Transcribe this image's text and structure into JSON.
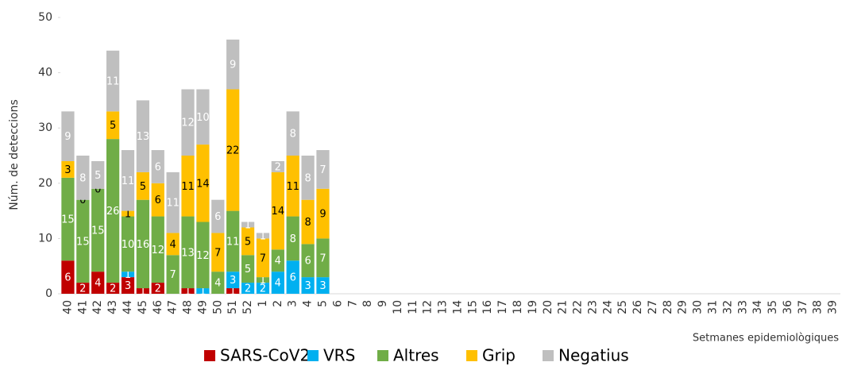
{
  "chart_data": {
    "type": "stacked_bar",
    "y_label": "Núm. de deteccions",
    "x_label": "Setmanes epidemiològiques",
    "categories": [
      "40",
      "41",
      "42",
      "43",
      "44",
      "45",
      "46",
      "47",
      "48",
      "49",
      "50",
      "51",
      "52",
      "1",
      "2",
      "3",
      "4",
      "5",
      "6",
      "7",
      "8",
      "9",
      "10",
      "11",
      "12",
      "13",
      "14",
      "15",
      "16",
      "17",
      "18",
      "19",
      "20",
      "21",
      "22",
      "23",
      "24",
      "25",
      "26",
      "27",
      "28",
      "29",
      "30",
      "31",
      "32",
      "33",
      "34",
      "35",
      "36",
      "37",
      "38",
      "39"
    ],
    "series": [
      {
        "name": "SARS-CoV2",
        "color": "#c00000",
        "label_color": "#ffffff",
        "values": [
          6,
          2,
          4,
          2,
          3,
          1,
          2,
          null,
          1,
          null,
          null,
          1,
          null,
          null,
          null,
          null,
          null,
          null,
          null,
          null,
          null,
          null,
          null,
          null,
          null,
          null,
          null,
          null,
          null,
          null,
          null,
          null,
          null,
          null,
          null,
          null,
          null,
          null,
          null,
          null,
          null,
          null,
          null,
          null,
          null,
          null,
          null,
          null,
          null,
          null,
          null,
          null
        ]
      },
      {
        "name": "VRS",
        "color": "#00b0f0",
        "label_color": "#ffffff",
        "values": [
          null,
          null,
          null,
          null,
          1,
          null,
          null,
          null,
          null,
          1,
          null,
          3,
          2,
          2,
          4,
          6,
          3,
          3,
          null,
          null,
          null,
          null,
          null,
          null,
          null,
          null,
          null,
          null,
          null,
          null,
          null,
          null,
          null,
          null,
          null,
          null,
          null,
          null,
          null,
          null,
          null,
          null,
          null,
          null,
          null,
          null,
          null,
          null,
          null,
          null,
          null,
          null
        ]
      },
      {
        "name": "Altres",
        "color": "#70ad47",
        "label_color": "#ffffff",
        "values": [
          15,
          15,
          15,
          26,
          10,
          16,
          12,
          7,
          13,
          12,
          4,
          11,
          5,
          1,
          4,
          8,
          6,
          7,
          null,
          null,
          null,
          null,
          null,
          null,
          null,
          null,
          null,
          null,
          null,
          null,
          null,
          null,
          null,
          null,
          null,
          null,
          null,
          null,
          null,
          null,
          null,
          null,
          null,
          null,
          null,
          null,
          null,
          null,
          null,
          null,
          null,
          null
        ]
      },
      {
        "name": "Grip",
        "color": "#ffc000",
        "label_color": "#000000",
        "values": [
          3,
          0,
          0,
          5,
          1,
          5,
          6,
          4,
          11,
          14,
          7,
          22,
          5,
          7,
          14,
          11,
          8,
          9,
          null,
          null,
          null,
          null,
          null,
          null,
          null,
          null,
          null,
          null,
          null,
          null,
          null,
          null,
          null,
          null,
          null,
          null,
          null,
          null,
          null,
          null,
          null,
          null,
          null,
          null,
          null,
          null,
          null,
          null,
          null,
          null,
          null,
          null
        ]
      },
      {
        "name": "Negatius",
        "color": "#bfbfbf",
        "label_color": "#ffffff",
        "values": [
          9,
          8,
          5,
          11,
          11,
          13,
          6,
          11,
          12,
          10,
          6,
          9,
          1,
          1,
          2,
          8,
          8,
          7,
          null,
          null,
          null,
          null,
          null,
          null,
          null,
          null,
          null,
          null,
          null,
          null,
          null,
          null,
          null,
          null,
          null,
          null,
          null,
          null,
          null,
          null,
          null,
          null,
          null,
          null,
          null,
          null,
          null,
          null,
          null,
          null,
          null,
          null
        ]
      }
    ],
    "ylim": [
      0,
      50
    ],
    "yticks": [
      0,
      10,
      20,
      30,
      40,
      50
    ],
    "legend": "bottom"
  }
}
